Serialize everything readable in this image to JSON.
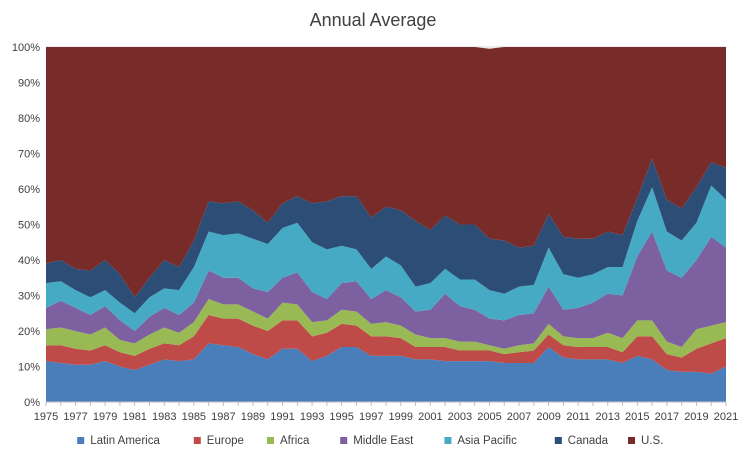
{
  "chart_data": {
    "type": "area",
    "stacked": "100%",
    "title": "Annual Average",
    "xlabel": "",
    "ylabel": "",
    "x": [
      1975,
      1976,
      1977,
      1978,
      1979,
      1980,
      1981,
      1982,
      1983,
      1984,
      1985,
      1986,
      1987,
      1988,
      1989,
      1990,
      1991,
      1992,
      1993,
      1994,
      1995,
      1996,
      1997,
      1998,
      1999,
      2000,
      2001,
      2002,
      2003,
      2004,
      2005,
      2006,
      2007,
      2008,
      2009,
      2010,
      2011,
      2012,
      2013,
      2014,
      2015,
      2016,
      2017,
      2018,
      2019,
      2020,
      2021
    ],
    "x_tick_labels": [
      "1975",
      "1977",
      "1979",
      "1981",
      "1983",
      "1985",
      "1987",
      "1989",
      "1991",
      "1993",
      "1995",
      "1997",
      "1999",
      "2001",
      "2003",
      "2005",
      "2007",
      "2009",
      "2011",
      "2013",
      "2015",
      "2017",
      "2019",
      "2021"
    ],
    "y_tick_labels": [
      "0%",
      "10%",
      "20%",
      "30%",
      "40%",
      "50%",
      "60%",
      "70%",
      "80%",
      "90%",
      "100%"
    ],
    "ylim": [
      0,
      100
    ],
    "grid": "horizontal",
    "legend_position": "bottom",
    "series": [
      {
        "name": "Latin America",
        "color": "#4a7ebb",
        "values": [
          11.5,
          11,
          10.5,
          10.5,
          11.5,
          10,
          9,
          10.5,
          12,
          11.5,
          12,
          16.5,
          16,
          15.5,
          13.5,
          12,
          15,
          15,
          11.5,
          13,
          15.5,
          15.5,
          13,
          13,
          13,
          12,
          12,
          11.5,
          11.5,
          11.5,
          11.5,
          11,
          11,
          11,
          15.5,
          12.5,
          12,
          12,
          12,
          11,
          13,
          12,
          9,
          8.5,
          8.5,
          8,
          10
        ]
      },
      {
        "name": "Europe",
        "color": "#be4b48",
        "values": [
          4.5,
          5,
          4.5,
          4,
          4.5,
          4,
          4,
          4.5,
          4.5,
          4.5,
          6.5,
          8,
          7.5,
          8,
          8,
          8,
          8,
          8,
          7,
          6.5,
          6.5,
          6,
          5.5,
          5.5,
          5,
          3.5,
          3.5,
          4,
          3,
          3,
          3,
          2.5,
          3,
          3.5,
          3.5,
          3.5,
          3.5,
          3.5,
          3.5,
          3,
          5.5,
          6.5,
          4.5,
          4,
          6.5,
          8.5,
          8
        ]
      },
      {
        "name": "Africa",
        "color": "#98b954",
        "values": [
          4.5,
          5,
          5,
          4.5,
          5,
          3.5,
          3.5,
          4,
          4.5,
          3.5,
          4,
          4.5,
          4,
          4,
          4,
          3.5,
          5,
          4.5,
          4,
          3.5,
          4,
          4,
          3.5,
          4,
          3.5,
          3.5,
          2.5,
          2.5,
          2.5,
          2.5,
          1.5,
          1.5,
          2,
          2,
          3,
          2.5,
          2.5,
          2.5,
          4,
          4,
          4.5,
          4.5,
          3.5,
          3,
          5.5,
          5,
          4.5
        ]
      },
      {
        "name": "Middle East",
        "color": "#7d60a0",
        "values": [
          6,
          7.5,
          6.5,
          5.5,
          6,
          5.5,
          3.5,
          5,
          5.5,
          5,
          5.5,
          8,
          7.5,
          7.5,
          6.5,
          7.5,
          7,
          9,
          8.5,
          6,
          7.5,
          8.5,
          7,
          9,
          8,
          6.5,
          8,
          12.5,
          10,
          9,
          7.5,
          8,
          8.5,
          8.5,
          10.5,
          7.5,
          8.5,
          10,
          11,
          12,
          18,
          25,
          20,
          19.5,
          19.5,
          25,
          21
        ]
      },
      {
        "name": "Asia Pacific",
        "color": "#46aac5",
        "values": [
          7,
          5.5,
          5,
          5,
          4.5,
          5,
          5,
          5.5,
          5.5,
          7,
          10,
          11,
          12,
          12.5,
          14,
          13.5,
          14,
          14,
          14,
          14,
          10.5,
          9,
          8.5,
          9.5,
          9,
          7,
          7.5,
          7,
          7.5,
          8.5,
          8,
          7.5,
          8,
          8,
          11,
          10,
          8.5,
          8,
          7.5,
          8,
          10,
          12.5,
          11,
          10.5,
          10.5,
          14.5,
          13.5
        ]
      },
      {
        "name": "Canada",
        "color": "#2c4d75",
        "values": [
          5.5,
          6,
          6,
          7.5,
          8.5,
          8,
          4.5,
          5.5,
          8,
          6.5,
          7.5,
          8.5,
          9,
          9,
          8,
          6,
          7,
          7.5,
          11,
          13.5,
          14,
          15,
          14.5,
          14,
          15.5,
          18.5,
          15,
          15,
          15.5,
          15.5,
          14.5,
          15,
          11,
          11,
          9.5,
          10.5,
          11,
          10,
          10,
          9,
          6.5,
          8,
          9,
          9,
          10,
          6.5,
          9
        ]
      },
      {
        "name": "U.S.",
        "color": "#772c2a",
        "values": [
          61,
          60,
          62.5,
          63,
          60,
          64,
          70.5,
          65,
          60,
          62,
          55,
          43.5,
          44,
          43.5,
          46,
          49.5,
          44,
          42,
          44,
          43.5,
          42,
          42,
          48,
          45,
          46,
          49,
          51.5,
          47.5,
          50,
          50,
          53.5,
          54.5,
          56.5,
          56,
          47,
          53.5,
          54,
          54,
          52,
          53,
          42.5,
          31.5,
          43,
          45.5,
          39.5,
          32.5,
          34
        ]
      }
    ]
  }
}
